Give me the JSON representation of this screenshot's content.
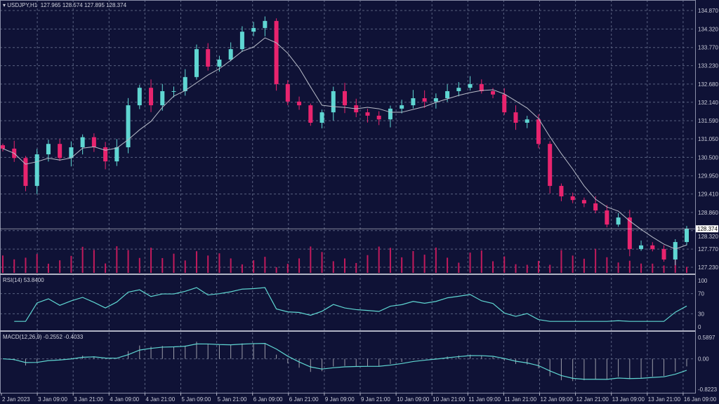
{
  "header": {
    "symbol": "USDJPY,H1",
    "ohlc": "127.965 128.574 127.895 128.374"
  },
  "rsi_header": "RSI(14) 53.8400",
  "macd_header": "MACD(12,26,9) -0.2552 -0.4033",
  "colors": {
    "background": "#0f1236",
    "up": "#5fd6d2",
    "down": "#e8246e",
    "grid": "#58607f",
    "ma": "#b8bcc8",
    "volume": "#c21a5c",
    "indicator": "#5fd6d2",
    "histogram": "#9a9ca8"
  },
  "chart_data": [
    {
      "type": "candlestick",
      "title": "USDJPY,H1",
      "current_price": "128.374",
      "ylim": [
        127.23,
        134.87
      ],
      "price_ticks": [
        "134.870",
        "134.320",
        "133.770",
        "133.230",
        "132.680",
        "132.140",
        "131.590",
        "131.050",
        "130.500",
        "129.950",
        "129.410",
        "128.860",
        "128.320",
        "127.770",
        "127.230"
      ],
      "time_ticks": [
        "2 Jan 2023",
        "3 Jan 09:00",
        "3 Jan 21:00",
        "4 Jan 09:00",
        "4 Jan 21:00",
        "5 Jan 09:00",
        "5 Jan 21:00",
        "6 Jan 09:00",
        "6 Jan 21:00",
        "9 Jan 09:00",
        "9 Jan 21:00",
        "10 Jan 09:00",
        "10 Jan 21:00",
        "11 Jan 09:00",
        "11 Jan 21:00",
        "12 Jan 09:00",
        "12 Jan 21:00",
        "13 Jan 09:00",
        "13 Jan 21:00",
        "16 Jan 09:00"
      ],
      "closes": [
        130.76,
        130.48,
        129.65,
        130.59,
        130.9,
        130.48,
        130.8,
        131.1,
        130.8,
        130.38,
        130.8,
        132.05,
        132.57,
        132.05,
        132.47,
        132.47,
        132.89,
        133.72,
        133.2,
        133.41,
        133.72,
        134.24,
        134.35,
        134.56,
        132.68,
        132.16,
        132.05,
        131.53,
        131.84,
        132.47,
        132.05,
        131.84,
        131.74,
        131.63,
        131.95,
        132.05,
        132.26,
        132.16,
        132.26,
        132.47,
        132.57,
        132.68,
        132.47,
        132.37,
        131.84,
        131.53,
        131.63,
        130.9,
        129.65,
        129.34,
        129.23,
        129.13,
        128.92,
        128.5,
        128.71,
        127.77,
        127.88,
        127.77,
        127.46,
        127.98,
        128.374
      ],
      "moving_average_period": 5
    },
    {
      "type": "line",
      "title": "RSI(14)",
      "value": 53.84,
      "ylim": [
        0,
        100
      ],
      "ticks": [
        "100",
        "70",
        "30",
        "0"
      ]
    },
    {
      "type": "line",
      "title": "MACD(12,26,9)",
      "values": [
        -0.2552,
        -0.4033
      ],
      "ylim": [
        -0.8223,
        0.5897
      ],
      "ticks": [
        "0.5897",
        "0.00",
        "-0.8223"
      ]
    }
  ]
}
